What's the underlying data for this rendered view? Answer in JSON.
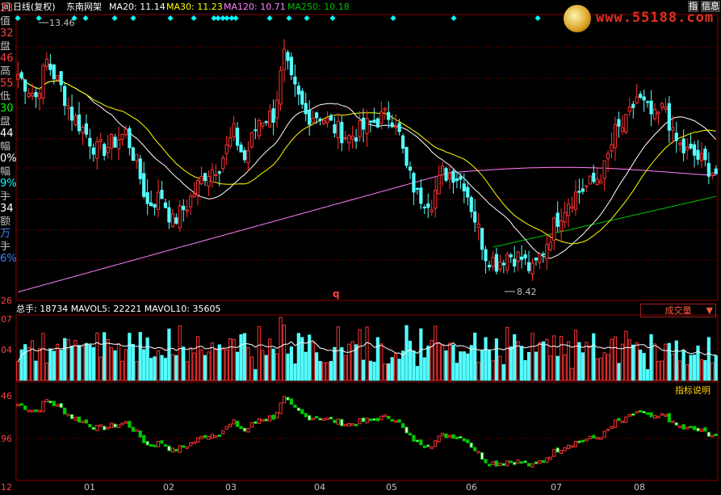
{
  "header": {
    "period_label": "日线(复权)",
    "stock_name": "东南网架",
    "ma": [
      {
        "label": "MA20: 11.14",
        "color": "#ffffff"
      },
      {
        "label": "MA30: 11.23",
        "color": "#ffff00"
      },
      {
        "label": "MA120: 10.71",
        "color": "#ff80ff"
      },
      {
        "label": "MA250: 10.18",
        "color": "#00c000"
      }
    ],
    "top_left_icon": "间",
    "buttons": {
      "indicator": "指",
      "info": "信息"
    }
  },
  "watermark": "www.55188.com",
  "side_panel": [
    {
      "text": "23",
      "color": "#ff4040"
    },
    {
      "text": "值",
      "color": "#c0c0c0"
    },
    {
      "text": "32",
      "color": "#ff4040"
    },
    {
      "text": "盘",
      "color": "#c0c0c0"
    },
    {
      "text": "46",
      "color": "#ff4040"
    },
    {
      "text": "高",
      "color": "#c0c0c0"
    },
    {
      "text": "55",
      "color": "#ff4040"
    },
    {
      "text": "低",
      "color": "#c0c0c0"
    },
    {
      "text": "30",
      "color": "#00ff00"
    },
    {
      "text": "盘",
      "color": "#c0c0c0"
    },
    {
      "text": "44",
      "color": "#ffffff"
    },
    {
      "text": "幅",
      "color": "#c0c0c0"
    },
    {
      "text": "0%",
      "color": "#ffffff"
    },
    {
      "text": "幅",
      "color": "#c0c0c0"
    },
    {
      "text": "9%",
      "color": "#00ffff"
    },
    {
      "text": "手",
      "color": "#c0c0c0"
    },
    {
      "text": "34",
      "color": "#ffffff"
    },
    {
      "text": "额",
      "color": "#c0c0c0"
    },
    {
      "text": "万",
      "color": "#4080ff"
    },
    {
      "text": "手",
      "color": "#c0c0c0"
    },
    {
      "text": "6%",
      "color": "#4080ff"
    }
  ],
  "volume_header": {
    "text": "总手: 18734  MAVOL5: 22221  MAVOL10: 35605",
    "turnover_button": "成交量",
    "turnover_arrow": "▼"
  },
  "indicator_explain": "指标说明",
  "axis": {
    "price_left_bottom": "26",
    "vol_left_top": "07",
    "vol_left_mid": "04",
    "ind_left_top": "46",
    "ind_left_mid": "96",
    "bottom_left": "12",
    "q_marker": "q"
  },
  "chart_data": {
    "type": "candlestick",
    "stock": "东南网架",
    "period": "日线(复权)",
    "high_label": "13.46",
    "low_label": "8.42",
    "months": [
      "01",
      "02",
      "03",
      "04",
      "05",
      "06",
      "07",
      "08"
    ],
    "colors": {
      "up": "#ff3232",
      "down": "#54ffff",
      "ma20": "#ffffff",
      "ma30": "#ffff00",
      "ma120": "#ff80ff",
      "ma250": "#00c000",
      "grid": "#8c0000"
    },
    "price_range": [
      7.9,
      14.2
    ],
    "ma_values": {
      "MA20": 11.14,
      "MA30": 11.23,
      "MA120": 10.71,
      "MA250": 10.18
    },
    "volume_summary": {
      "total_hands": 18734,
      "MAVOL5": 22221,
      "MAVOL10": 35605
    },
    "price_keypoints": [
      [
        0,
        12.9
      ],
      [
        5,
        12.4
      ],
      [
        8,
        13.2
      ],
      [
        12,
        12.6
      ],
      [
        15,
        12.0
      ],
      [
        18,
        11.7
      ],
      [
        22,
        11.2
      ],
      [
        25,
        11.3
      ],
      [
        30,
        11.6
      ],
      [
        33,
        10.9
      ],
      [
        36,
        10.0
      ],
      [
        40,
        10.2
      ],
      [
        43,
        9.6
      ],
      [
        47,
        10.0
      ],
      [
        52,
        10.7
      ],
      [
        56,
        10.9
      ],
      [
        60,
        11.6
      ],
      [
        63,
        11.0
      ],
      [
        67,
        11.9
      ],
      [
        71,
        12.0
      ],
      [
        74,
        13.3
      ],
      [
        76,
        12.7
      ],
      [
        80,
        12.0
      ],
      [
        84,
        12.0
      ],
      [
        88,
        11.7
      ],
      [
        92,
        11.5
      ],
      [
        96,
        11.7
      ],
      [
        100,
        11.9
      ],
      [
        103,
        12.0
      ],
      [
        105,
        11.9
      ],
      [
        108,
        10.8
      ],
      [
        111,
        10.2
      ],
      [
        115,
        10.1
      ],
      [
        118,
        10.7
      ],
      [
        121,
        10.7
      ],
      [
        124,
        10.5
      ],
      [
        127,
        9.7
      ],
      [
        130,
        8.9
      ],
      [
        133,
        8.7
      ],
      [
        136,
        8.9
      ],
      [
        140,
        8.8
      ],
      [
        143,
        8.5
      ],
      [
        146,
        9.0
      ],
      [
        150,
        9.7
      ],
      [
        153,
        10.1
      ],
      [
        156,
        10.3
      ],
      [
        160,
        10.5
      ],
      [
        163,
        10.8
      ],
      [
        166,
        11.6
      ],
      [
        169,
        11.8
      ],
      [
        172,
        12.4
      ],
      [
        174,
        12.2
      ],
      [
        177,
        11.9
      ],
      [
        180,
        12.2
      ],
      [
        182,
        11.5
      ],
      [
        185,
        11.2
      ],
      [
        188,
        11.1
      ],
      [
        191,
        10.9
      ],
      [
        194,
        10.7
      ]
    ]
  }
}
